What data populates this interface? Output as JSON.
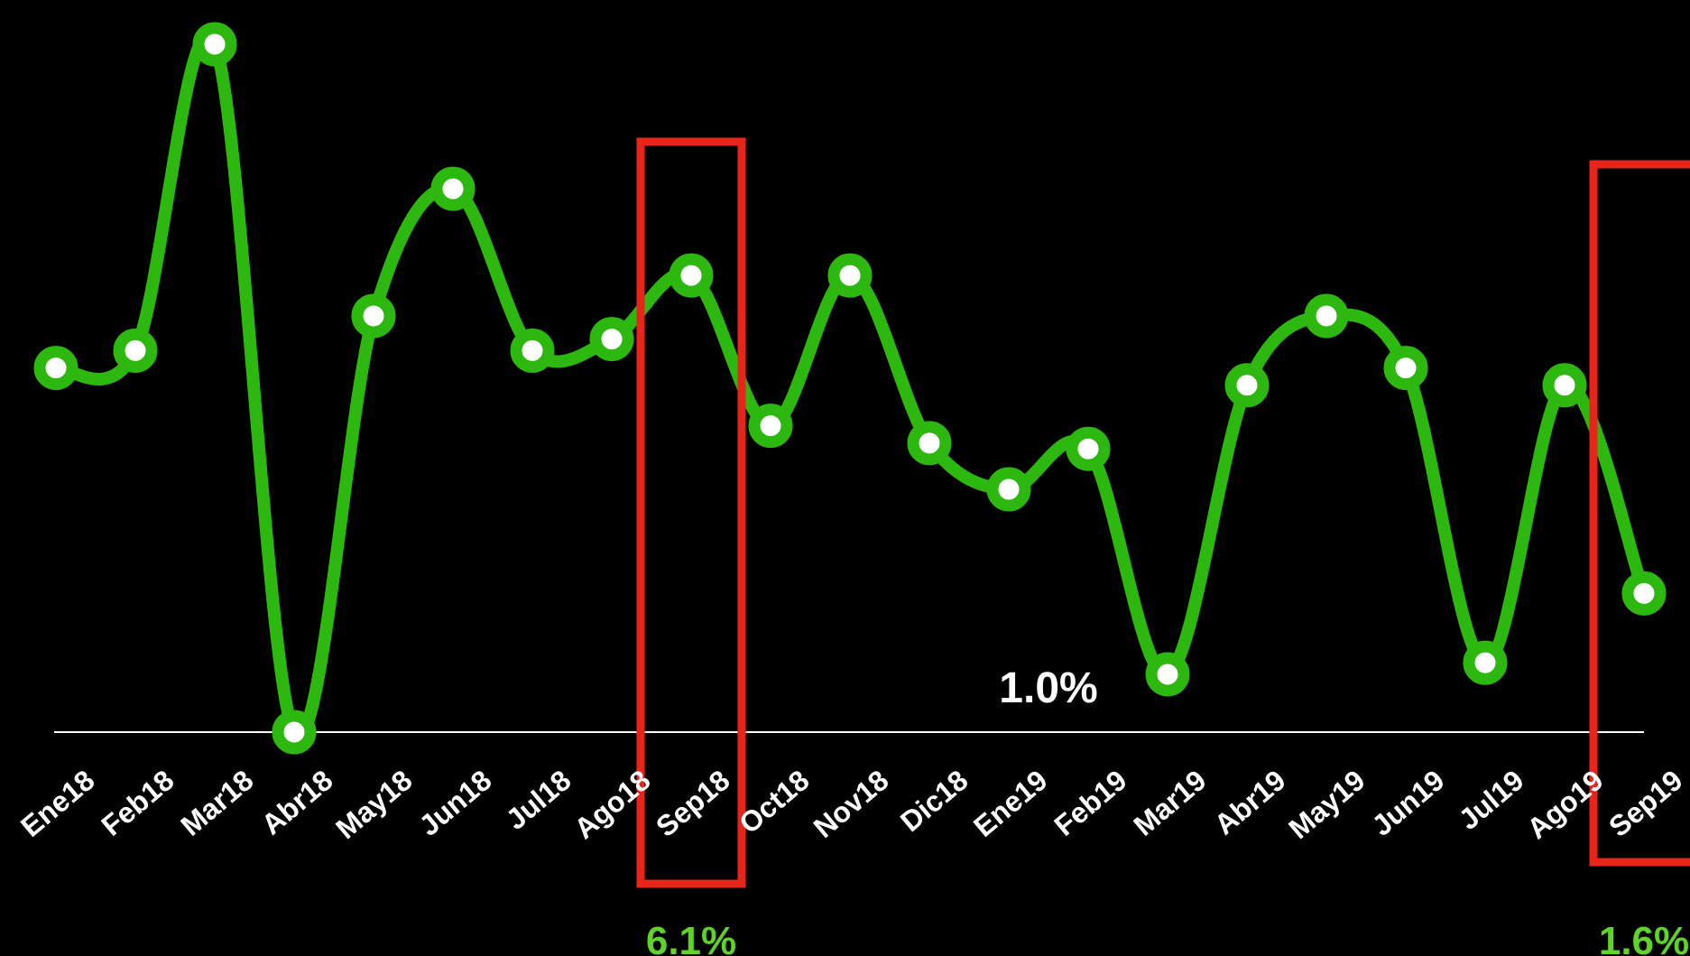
{
  "chart_data": {
    "type": "line",
    "categories": [
      "Ene18",
      "Feb18",
      "Mar18",
      "Abr18",
      "May18",
      "Jun18",
      "Jul18",
      "Ago18",
      "Sep18",
      "Oct18",
      "Nov18",
      "Dic18",
      "Ene19",
      "Feb19",
      "Mar19",
      "Abr19",
      "May19",
      "Jun19",
      "Jul19",
      "Ago19",
      "Sep19"
    ],
    "series": [
      {
        "values": [
          7.3,
          7.6,
          12.9,
          1.0,
          8.2,
          10.4,
          7.6,
          7.8,
          8.9,
          6.3,
          8.9,
          6.0,
          5.2,
          5.9,
          2.0,
          7.0,
          8.2,
          7.3,
          2.2,
          7.0,
          3.4
        ]
      }
    ],
    "reference_line": {
      "value": 1.0,
      "label": "1.0%"
    },
    "highlights": [
      {
        "category": "Sep18",
        "label": "6.1%"
      },
      {
        "category": "Sep19",
        "label": "1.6%"
      }
    ],
    "colors": {
      "background": "#000000",
      "line": "#2db80f",
      "marker_fill": "#ffffff",
      "highlight_box": "#e8251a",
      "highlight_label": "#5fd32a",
      "reference_line": "#ffffff",
      "text": "#ffffff"
    },
    "grid": false,
    "legend": "none"
  }
}
